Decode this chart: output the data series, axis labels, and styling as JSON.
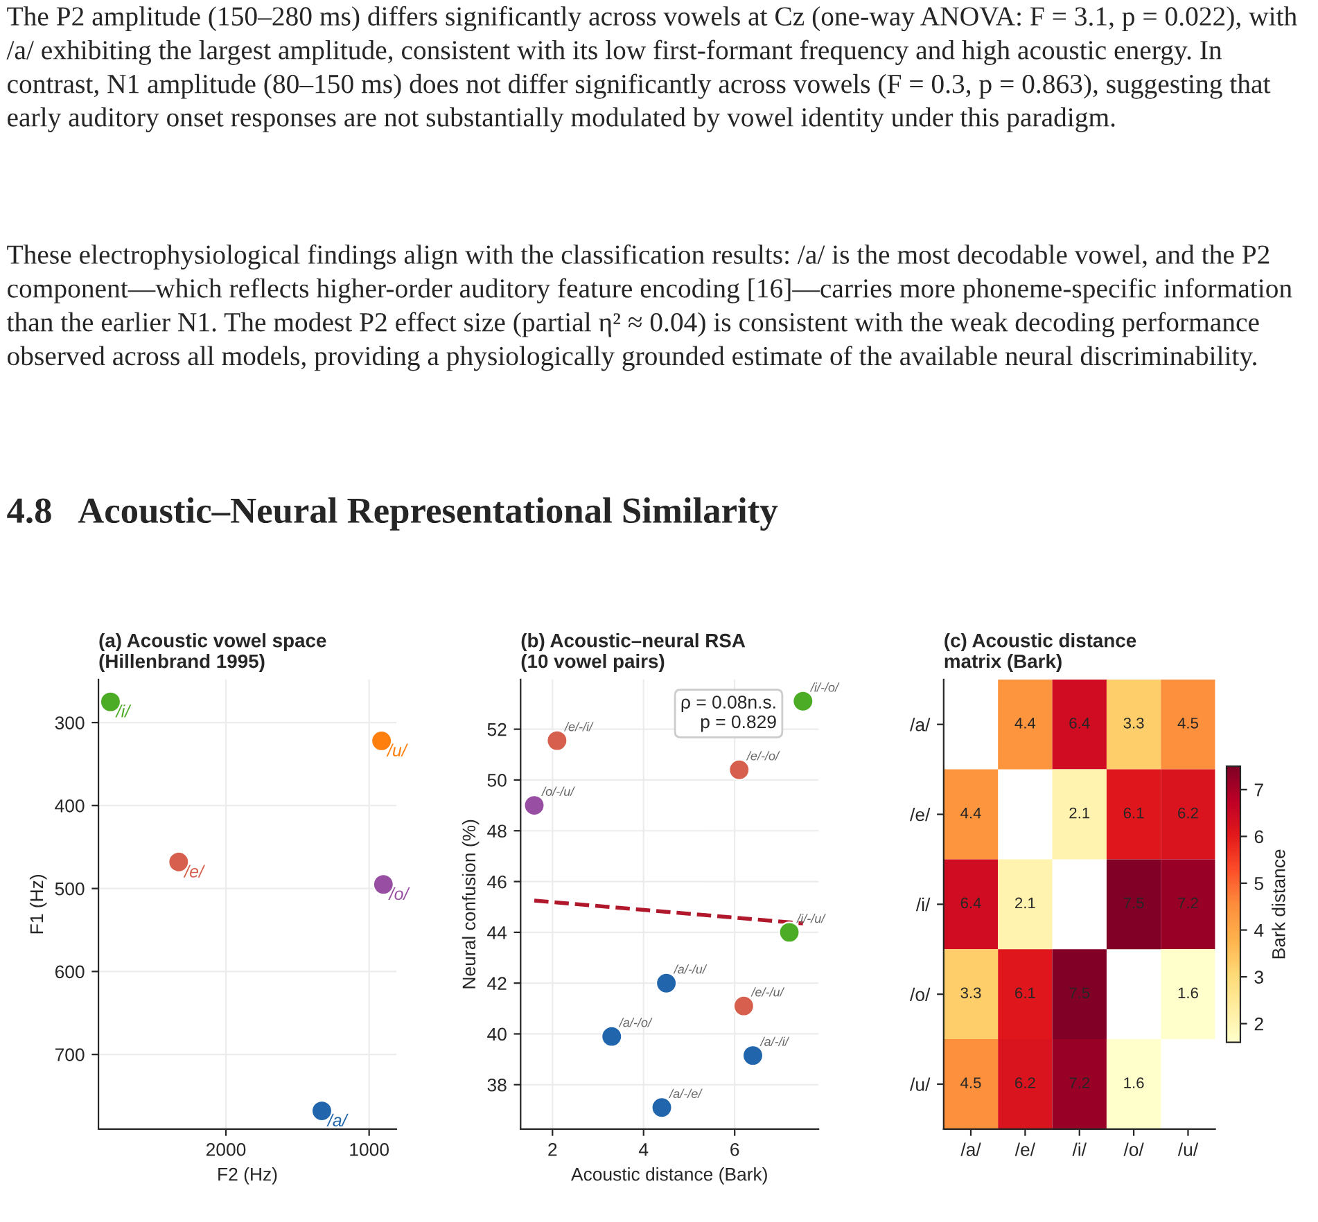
{
  "chart_data": [
    {
      "type": "scatter",
      "title": "(a) Acoustic vowel space\n(Hillenbrand 1995)",
      "xlabel": "F2 (Hz)",
      "ylabel": "F1 (Hz)",
      "annotations": [
        "The P2 amplitude (150–280 ms) differs significantly across vowels at Cz (one-way ANOVA: F = 3.1, p = 0.022), with /a/ exhibiting the largest amplitude, consistent with its low first-formant frequency and high acoustic energy. In contrast, N1 amplitude (80–150 ms) does not differ significantly across vowels (F = 0.3, p = 0.863), suggesting that early auditory onset responses are not substantially modulated by vowel identity under this paradigm.",
        "These electrophysiological findings align with the classification results: /a/ is the most decodable vowel, and the P2 component—which reflects higher-order auditory feature encoding [16]—carries more phoneme-specific information than the earlier N1. The modest P2 effect size (partial η² ≈ 0.04) is consistent with the weak decoding performance observed across all models, providing a physiologically grounded estimate of the available neural discriminability.",
        "4.8   Acoustic–Neural Representational Similarity"
      ],
      "series": [
        {
          "name": "/i/",
          "color": "#4dac26",
          "x": [
            2806
          ],
          "values": [
            275
          ]
        },
        {
          "name": "/u/",
          "color": "#ff7f0e",
          "x": [
            913
          ],
          "values": [
            322
          ]
        },
        {
          "name": "/e/",
          "color": "#d6604d",
          "x": [
            2330
          ],
          "values": [
            468
          ]
        },
        {
          "name": "/o/",
          "color": "#984ea3",
          "x": [
            900
          ],
          "values": [
            495
          ]
        },
        {
          "name": "/a/",
          "color": "#2166ac",
          "x": [
            1330
          ],
          "values": [
            768
          ]
        }
      ],
      "xlim": [
        2890,
        810
      ],
      "ylim": [
        790,
        248
      ],
      "xticks": [
        2000,
        1000
      ],
      "yticks": [
        300,
        400,
        500,
        600,
        700
      ],
      "grid": true,
      "marker": "circle"
    },
    {
      "type": "scatter",
      "title": "(b) Acoustic–neural RSA\n(10 vowel pairs)",
      "xlabel": "Acoustic distance (Bark)",
      "ylabel": "Neural confusion (%)",
      "series": [
        {
          "x": [
            4.4,
            6.4,
            3.3,
            4.5,
            2.1,
            6.1,
            6.2,
            7.5,
            7.2,
            1.6
          ],
          "values": [
            37.1,
            39.15,
            39.9,
            42.0,
            51.55,
            50.4,
            41.1,
            53.1,
            44.0,
            49.0
          ],
          "colors": [
            "#2166ac",
            "#2166ac",
            "#2166ac",
            "#2166ac",
            "#d6604d",
            "#d6604d",
            "#d6604d",
            "#4dac26",
            "#4dac26",
            "#984ea3"
          ],
          "marker": "circle"
        },
        {
          "type": "line",
          "x": [
            1.6,
            7.5
          ],
          "values": [
            45.25,
            44.35
          ],
          "color": "#b2182b"
        }
      ],
      "annotations": [
        {
          "text": "/a/-/e/",
          "x": 4.4,
          "y": 37.1
        },
        {
          "text": "/a/-/i/",
          "x": 6.4,
          "y": 39.15
        },
        {
          "text": "/a/-/o/",
          "x": 3.3,
          "y": 39.9
        },
        {
          "text": "/a/-/u/",
          "x": 4.5,
          "y": 42.0
        },
        {
          "text": "/e/-/i/",
          "x": 2.1,
          "y": 51.55
        },
        {
          "text": "/e/-/o/",
          "x": 6.1,
          "y": 50.4
        },
        {
          "text": "/e/-/u/",
          "x": 6.2,
          "y": 41.1
        },
        {
          "text": "/i/-/o/",
          "x": 7.5,
          "y": 53.1
        },
        {
          "text": "/i/-/u/",
          "x": 7.2,
          "y": 44.0
        },
        {
          "text": "/o/-/u/",
          "x": 1.6,
          "y": 49.0
        },
        "ρ = 0.08n.s.\np = 0.829"
      ],
      "xlim": [
        1.3,
        7.84
      ],
      "ylim": [
        36.25,
        53.96
      ],
      "xticks": [
        2,
        4,
        6
      ],
      "yticks": [
        38,
        40,
        42,
        44,
        46,
        48,
        50,
        52
      ],
      "grid": true,
      "line_style": "dashed"
    },
    {
      "type": "heatmap",
      "title": "(c) Acoustic distance\nmatrix (Bark)",
      "clabel": "Bark distance",
      "categories": [
        "/a/",
        "/e/",
        "/i/",
        "/o/",
        "/u/"
      ],
      "y_categories": [
        "/a/",
        "/e/",
        "/i/",
        "/o/",
        "/u/"
      ],
      "cells": [
        [
          null,
          4.4,
          6.4,
          3.3,
          4.5
        ],
        [
          4.4,
          null,
          2.1,
          6.1,
          6.2
        ],
        [
          6.4,
          2.1,
          null,
          7.5,
          7.2
        ],
        [
          3.3,
          6.1,
          7.5,
          null,
          1.6
        ],
        [
          4.5,
          6.2,
          7.2,
          1.6,
          null
        ]
      ],
      "clim": [
        1.6,
        7.5
      ],
      "cticks": [
        2,
        3,
        4,
        5,
        6,
        7
      ],
      "data_labels": true
    }
  ]
}
